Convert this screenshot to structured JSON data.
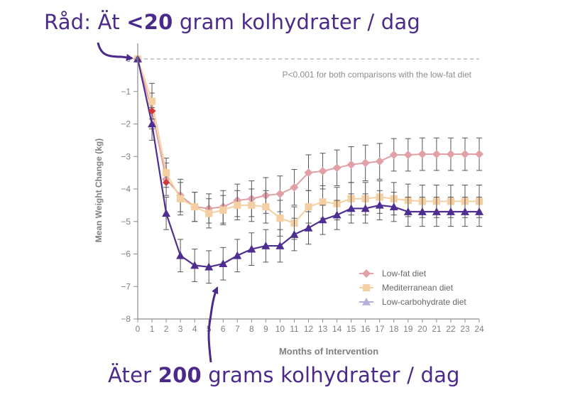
{
  "annotations": {
    "top": {
      "prefix": "Råd: Ät ",
      "bold": "<20",
      "suffix": " gram kolhydrater / dag"
    },
    "bottom": {
      "prefix": "Äter ",
      "bold": "200",
      "suffix": " grams kolhydrater / dag"
    }
  },
  "colors": {
    "axis": "#8c8c8c",
    "axis_label": "#808080",
    "zero_line": "#9a9a9a",
    "low_fat": "#e0a0a5",
    "mediterranean": "#f3cfa2",
    "low_carb": "#4e2f91",
    "low_carb_legend": "#b7aedb",
    "early_red": "#cc3a3a",
    "error_bar": "#555555",
    "annotation": "#4b2a8a"
  },
  "chart_data": {
    "type": "line",
    "xlabel": "Months of Intervention",
    "ylabel": "Mean Weight Change (kg)",
    "xlim": [
      0,
      24
    ],
    "ylim": [
      -8,
      0
    ],
    "x": [
      0,
      1,
      2,
      3,
      4,
      5,
      6,
      7,
      8,
      9,
      10,
      11,
      12,
      13,
      14,
      15,
      16,
      17,
      18,
      19,
      20,
      21,
      22,
      23,
      24
    ],
    "x_tick_labels": [
      "0",
      "1",
      "2",
      "3",
      "4",
      "5",
      "6",
      "7",
      "8",
      "9",
      "10",
      "11",
      "12",
      "13",
      "14",
      "15",
      "16",
      "17",
      "18",
      "19",
      "20",
      "21",
      "22",
      "23",
      "24"
    ],
    "y_ticks": [
      0,
      -1,
      -2,
      -3,
      -4,
      -5,
      -6,
      -7,
      -8
    ],
    "y_tick_labels": [
      "0",
      "−1",
      "−2",
      "−3",
      "−4",
      "−5",
      "−6",
      "−7",
      "−8"
    ],
    "annotation": "P<0.001 for both comparisons with the low-fat diet",
    "legend_position": "bottom-right",
    "series": [
      {
        "name": "Low-fat diet",
        "marker": "diamond",
        "x": [
          0,
          1,
          2,
          3,
          4,
          5,
          6,
          7,
          8,
          9,
          10,
          11,
          12,
          13,
          14,
          15,
          16,
          17,
          18,
          19,
          20,
          21,
          22,
          23,
          24
        ],
        "values": [
          0,
          -1.6,
          -3.7,
          -4.2,
          -4.55,
          -4.6,
          -4.55,
          -4.35,
          -4.3,
          -4.2,
          -4.15,
          -3.95,
          -3.5,
          -3.45,
          -3.35,
          -3.25,
          -3.2,
          -3.15,
          -2.95,
          -2.95,
          -2.93,
          -2.93,
          -2.93,
          -2.93,
          -2.93
        ],
        "errors": [
          0,
          0.55,
          0.5,
          0.5,
          0.45,
          0.45,
          0.5,
          0.5,
          0.55,
          0.55,
          0.55,
          0.55,
          0.55,
          0.55,
          0.55,
          0.55,
          0.55,
          0.55,
          0.5,
          0.5,
          0.5,
          0.5,
          0.5,
          0.5,
          0.5
        ]
      },
      {
        "name": "Mediterranean diet",
        "marker": "square",
        "x": [
          0,
          1,
          2,
          3,
          4,
          5,
          6,
          7,
          8,
          9,
          10,
          11,
          12,
          13,
          14,
          15,
          16,
          17,
          18,
          19,
          20,
          21,
          22,
          23,
          24
        ],
        "values": [
          0,
          -1.3,
          -3.5,
          -4.3,
          -4.55,
          -4.75,
          -4.65,
          -4.5,
          -4.5,
          -4.55,
          -4.9,
          -5.05,
          -4.55,
          -4.4,
          -4.45,
          -4.3,
          -4.3,
          -4.25,
          -4.3,
          -4.35,
          -4.38,
          -4.38,
          -4.38,
          -4.38,
          -4.38
        ],
        "errors": [
          0,
          0.55,
          0.45,
          0.5,
          0.45,
          0.45,
          0.45,
          0.45,
          0.5,
          0.5,
          0.55,
          0.5,
          0.5,
          0.5,
          0.5,
          0.5,
          0.5,
          0.5,
          0.5,
          0.5,
          0.5,
          0.5,
          0.5,
          0.5,
          0.5
        ]
      },
      {
        "name": "Low-carbohydrate diet",
        "marker": "triangle",
        "x": [
          0,
          1,
          2,
          3,
          4,
          5,
          6,
          7,
          8,
          9,
          10,
          11,
          12,
          13,
          14,
          15,
          16,
          17,
          18,
          19,
          20,
          21,
          22,
          23,
          24
        ],
        "values": [
          0,
          -2.0,
          -4.75,
          -6.05,
          -6.35,
          -6.4,
          -6.3,
          -6.05,
          -5.85,
          -5.75,
          -5.75,
          -5.4,
          -5.2,
          -4.95,
          -4.8,
          -4.6,
          -4.6,
          -4.5,
          -4.55,
          -4.7,
          -4.7,
          -4.7,
          -4.7,
          -4.7,
          -4.7
        ],
        "errors": [
          0,
          0.5,
          0.5,
          0.5,
          0.5,
          0.5,
          0.5,
          0.5,
          0.5,
          0.5,
          0.5,
          0.5,
          0.5,
          0.45,
          0.45,
          0.45,
          0.45,
          0.45,
          0.45,
          0.45,
          0.45,
          0.45,
          0.45,
          0.45,
          0.45
        ]
      }
    ]
  }
}
